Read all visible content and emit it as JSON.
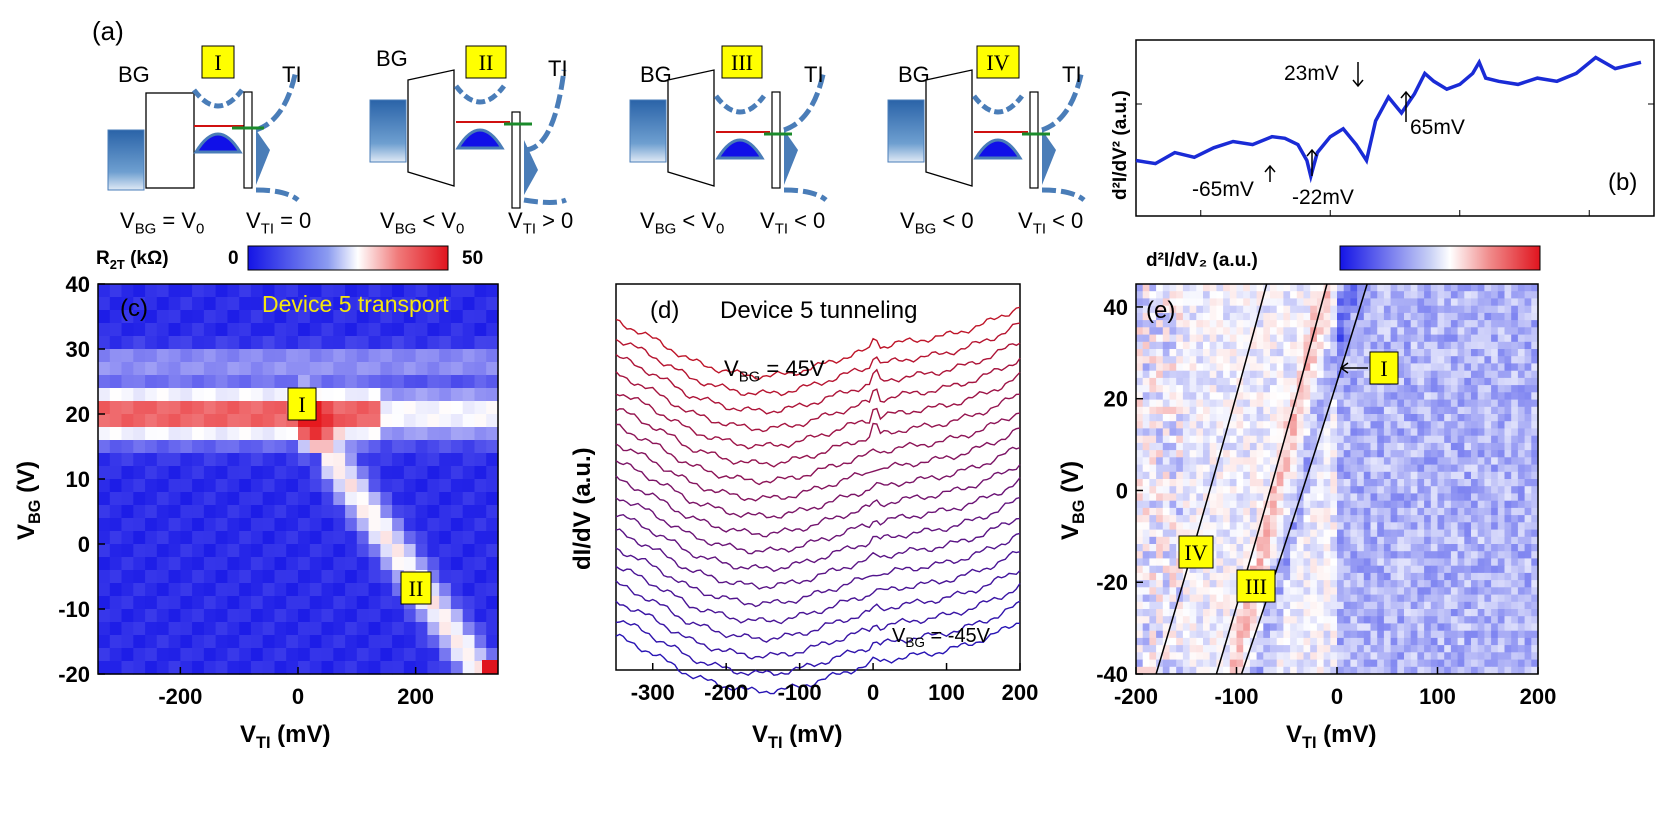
{
  "panel_labels": {
    "a": "(a)",
    "b": "(b)",
    "c": "(c)",
    "d": "(d)",
    "e": "(e)"
  },
  "schematics": [
    {
      "roman": "I",
      "bg": "BG",
      "ti": "TI",
      "cond_bg": "V_BG = V_0",
      "cond_ti": "V_TI = 0"
    },
    {
      "roman": "II",
      "bg": "BG",
      "ti": "TI",
      "cond_bg": "V_BG < V_0",
      "cond_ti": "V_TI > 0"
    },
    {
      "roman": "III",
      "bg": "BG",
      "ti": "TI",
      "cond_bg": "V_BG < V_0",
      "cond_ti": "V_TI < 0"
    },
    {
      "roman": "IV",
      "bg": "BG",
      "ti": "TI",
      "cond_bg": "V_BG < 0",
      "cond_ti": "V_TI < 0"
    }
  ],
  "colors": {
    "blue": "#1a2bd6",
    "red": "#e0141e",
    "yellow": "#ffff00",
    "steel": "#4a7db8",
    "green": "#1a8a2a"
  },
  "chart_data": [
    {
      "id": "b",
      "type": "line",
      "ylabel": "d²I/dV² (a.u.)",
      "annotations": [
        "23mV",
        "65mV",
        "-65mV",
        "-22mV"
      ],
      "series": [
        {
          "name": "d2I/dV2",
          "color": "#1a2bd6",
          "x": [
            -200,
            -185,
            -170,
            -155,
            -140,
            -125,
            -110,
            -95,
            -85,
            -75,
            -68,
            -65,
            -60,
            -50,
            -40,
            -30,
            -22,
            -15,
            -5,
            5,
            15,
            23,
            30,
            40,
            50,
            60,
            65,
            70,
            80,
            95,
            110,
            125,
            140,
            155,
            170,
            180,
            190
          ],
          "values": [
            0.3,
            0.28,
            0.35,
            0.32,
            0.38,
            0.42,
            0.4,
            0.45,
            0.44,
            0.4,
            0.3,
            0.2,
            0.35,
            0.45,
            0.5,
            0.4,
            0.3,
            0.55,
            0.7,
            0.6,
            0.72,
            0.85,
            0.8,
            0.75,
            0.78,
            0.85,
            0.92,
            0.82,
            0.8,
            0.78,
            0.82,
            0.8,
            0.85,
            0.95,
            0.88,
            0.9,
            0.92
          ]
        }
      ]
    },
    {
      "id": "c",
      "type": "heatmap",
      "title": "Device 5 transport",
      "xlabel": "V_TI (mV)",
      "ylabel": "V_BG (V)",
      "xlim": [
        -340,
        340
      ],
      "ylim": [
        -20,
        40
      ],
      "xticks": [
        "-200",
        "0",
        "200"
      ],
      "yticks": [
        "-20",
        "-10",
        "0",
        "10",
        "20",
        "30",
        "40"
      ],
      "colorbar": {
        "label": "R_2T (kΩ)",
        "min": "0",
        "max": "50"
      },
      "markers": [
        "I",
        "II"
      ]
    },
    {
      "id": "d",
      "type": "line",
      "title": "Device 5 tunneling",
      "xlabel": "V_TI (mV)",
      "ylabel": "dI/dV (a.u.)",
      "xlim": [
        -350,
        200
      ],
      "xticks": [
        "-300",
        "-200",
        "-100",
        "0",
        "100",
        "200"
      ],
      "top_label": "V_BG = 45V",
      "bottom_label": "V_BG = -45V",
      "curve_count": 19
    },
    {
      "id": "e",
      "type": "heatmap",
      "xlabel": "V_TI (mV)",
      "ylabel": "V_BG (V)",
      "xlim": [
        -200,
        200
      ],
      "ylim": [
        -40,
        45
      ],
      "xticks": [
        "-200",
        "-100",
        "0",
        "100",
        "200"
      ],
      "yticks": [
        "-40",
        "-20",
        "0",
        "20",
        "40"
      ],
      "colorbar": {
        "label": "d²I/dV₂ (a.u.)"
      },
      "markers": [
        "I",
        "III",
        "IV"
      ]
    }
  ]
}
